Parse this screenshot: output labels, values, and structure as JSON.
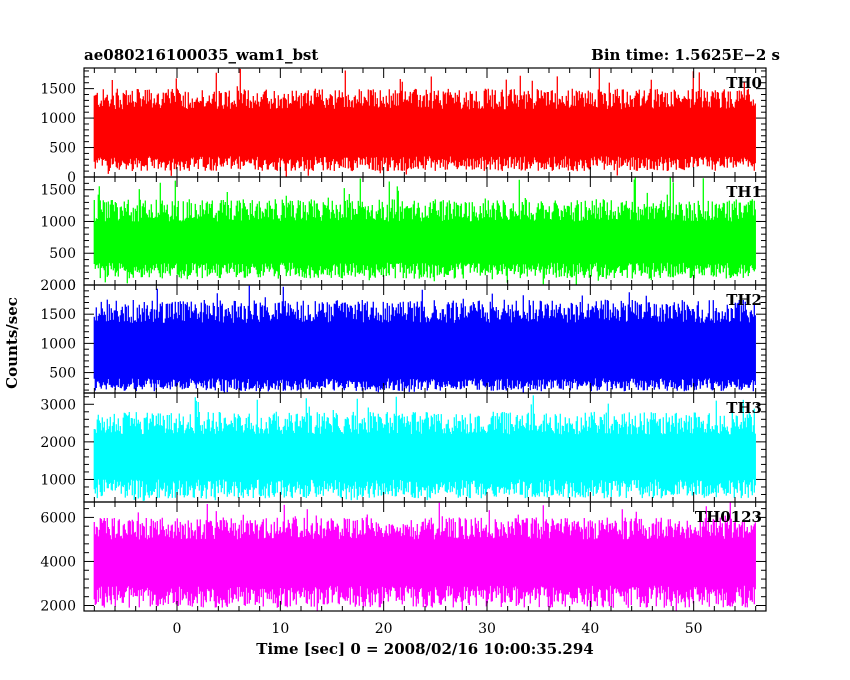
{
  "chart_data": {
    "type": "line",
    "title_left": "ae080216100035_wam1_bst",
    "title_right": "Bin time: 1.5625E−2 s",
    "xlabel": "Time [sec] 0 = 2008/02/16 10:00:35.294",
    "ylabel": "Counts/sec",
    "xlim": [
      -9,
      57
    ],
    "x_ticks": [
      0,
      10,
      20,
      30,
      40,
      50
    ],
    "data_range": [
      -8,
      56
    ],
    "grid": false,
    "panels": [
      {
        "name": "TH0",
        "color": "#ff0000",
        "ylim": [
          0,
          1850
        ],
        "y_ticks": [
          0,
          500,
          1000,
          1500
        ],
        "y_tick_labels": [
          "0",
          "500",
          "1000",
          "1500"
        ],
        "band_low": [
          100,
          350
        ],
        "band_high": [
          1150,
          1500
        ],
        "spike_max": 1850,
        "dip_min": 0
      },
      {
        "name": "TH1",
        "color": "#00ff00",
        "ylim": [
          0,
          1700
        ],
        "y_ticks": [
          0,
          500,
          1000,
          1500
        ],
        "y_tick_labels": [
          "0",
          "500",
          "1000",
          "1500"
        ],
        "band_low": [
          100,
          350
        ],
        "band_high": [
          1000,
          1350
        ],
        "spike_max": 1700,
        "dip_min": 0
      },
      {
        "name": "TH2",
        "color": "#0000ff",
        "ylim": [
          150,
          2000
        ],
        "y_ticks": [
          500,
          1000,
          1500,
          2000
        ],
        "y_tick_labels": [
          "500",
          "1000",
          "1500",
          "2000"
        ],
        "band_low": [
          180,
          400
        ],
        "band_high": [
          1350,
          1750
        ],
        "spike_max": 2000,
        "dip_min": 150
      },
      {
        "name": "TH3",
        "color": "#00ffff",
        "ylim": [
          400,
          3300
        ],
        "y_ticks": [
          1000,
          2000,
          3000
        ],
        "y_tick_labels": [
          "1000",
          "2000",
          "3000"
        ],
        "band_low": [
          500,
          1000
        ],
        "band_high": [
          2200,
          2800
        ],
        "spike_max": 3300,
        "dip_min": 400
      },
      {
        "name": "TH0123",
        "color": "#ff00ff",
        "ylim": [
          1750,
          6700
        ],
        "y_ticks": [
          2000,
          4000,
          6000
        ],
        "y_tick_labels": [
          "2000",
          "4000",
          "6000"
        ],
        "band_low": [
          1900,
          2900
        ],
        "band_high": [
          5000,
          6000
        ],
        "spike_max": 6700,
        "dip_min": 1750
      }
    ]
  }
}
